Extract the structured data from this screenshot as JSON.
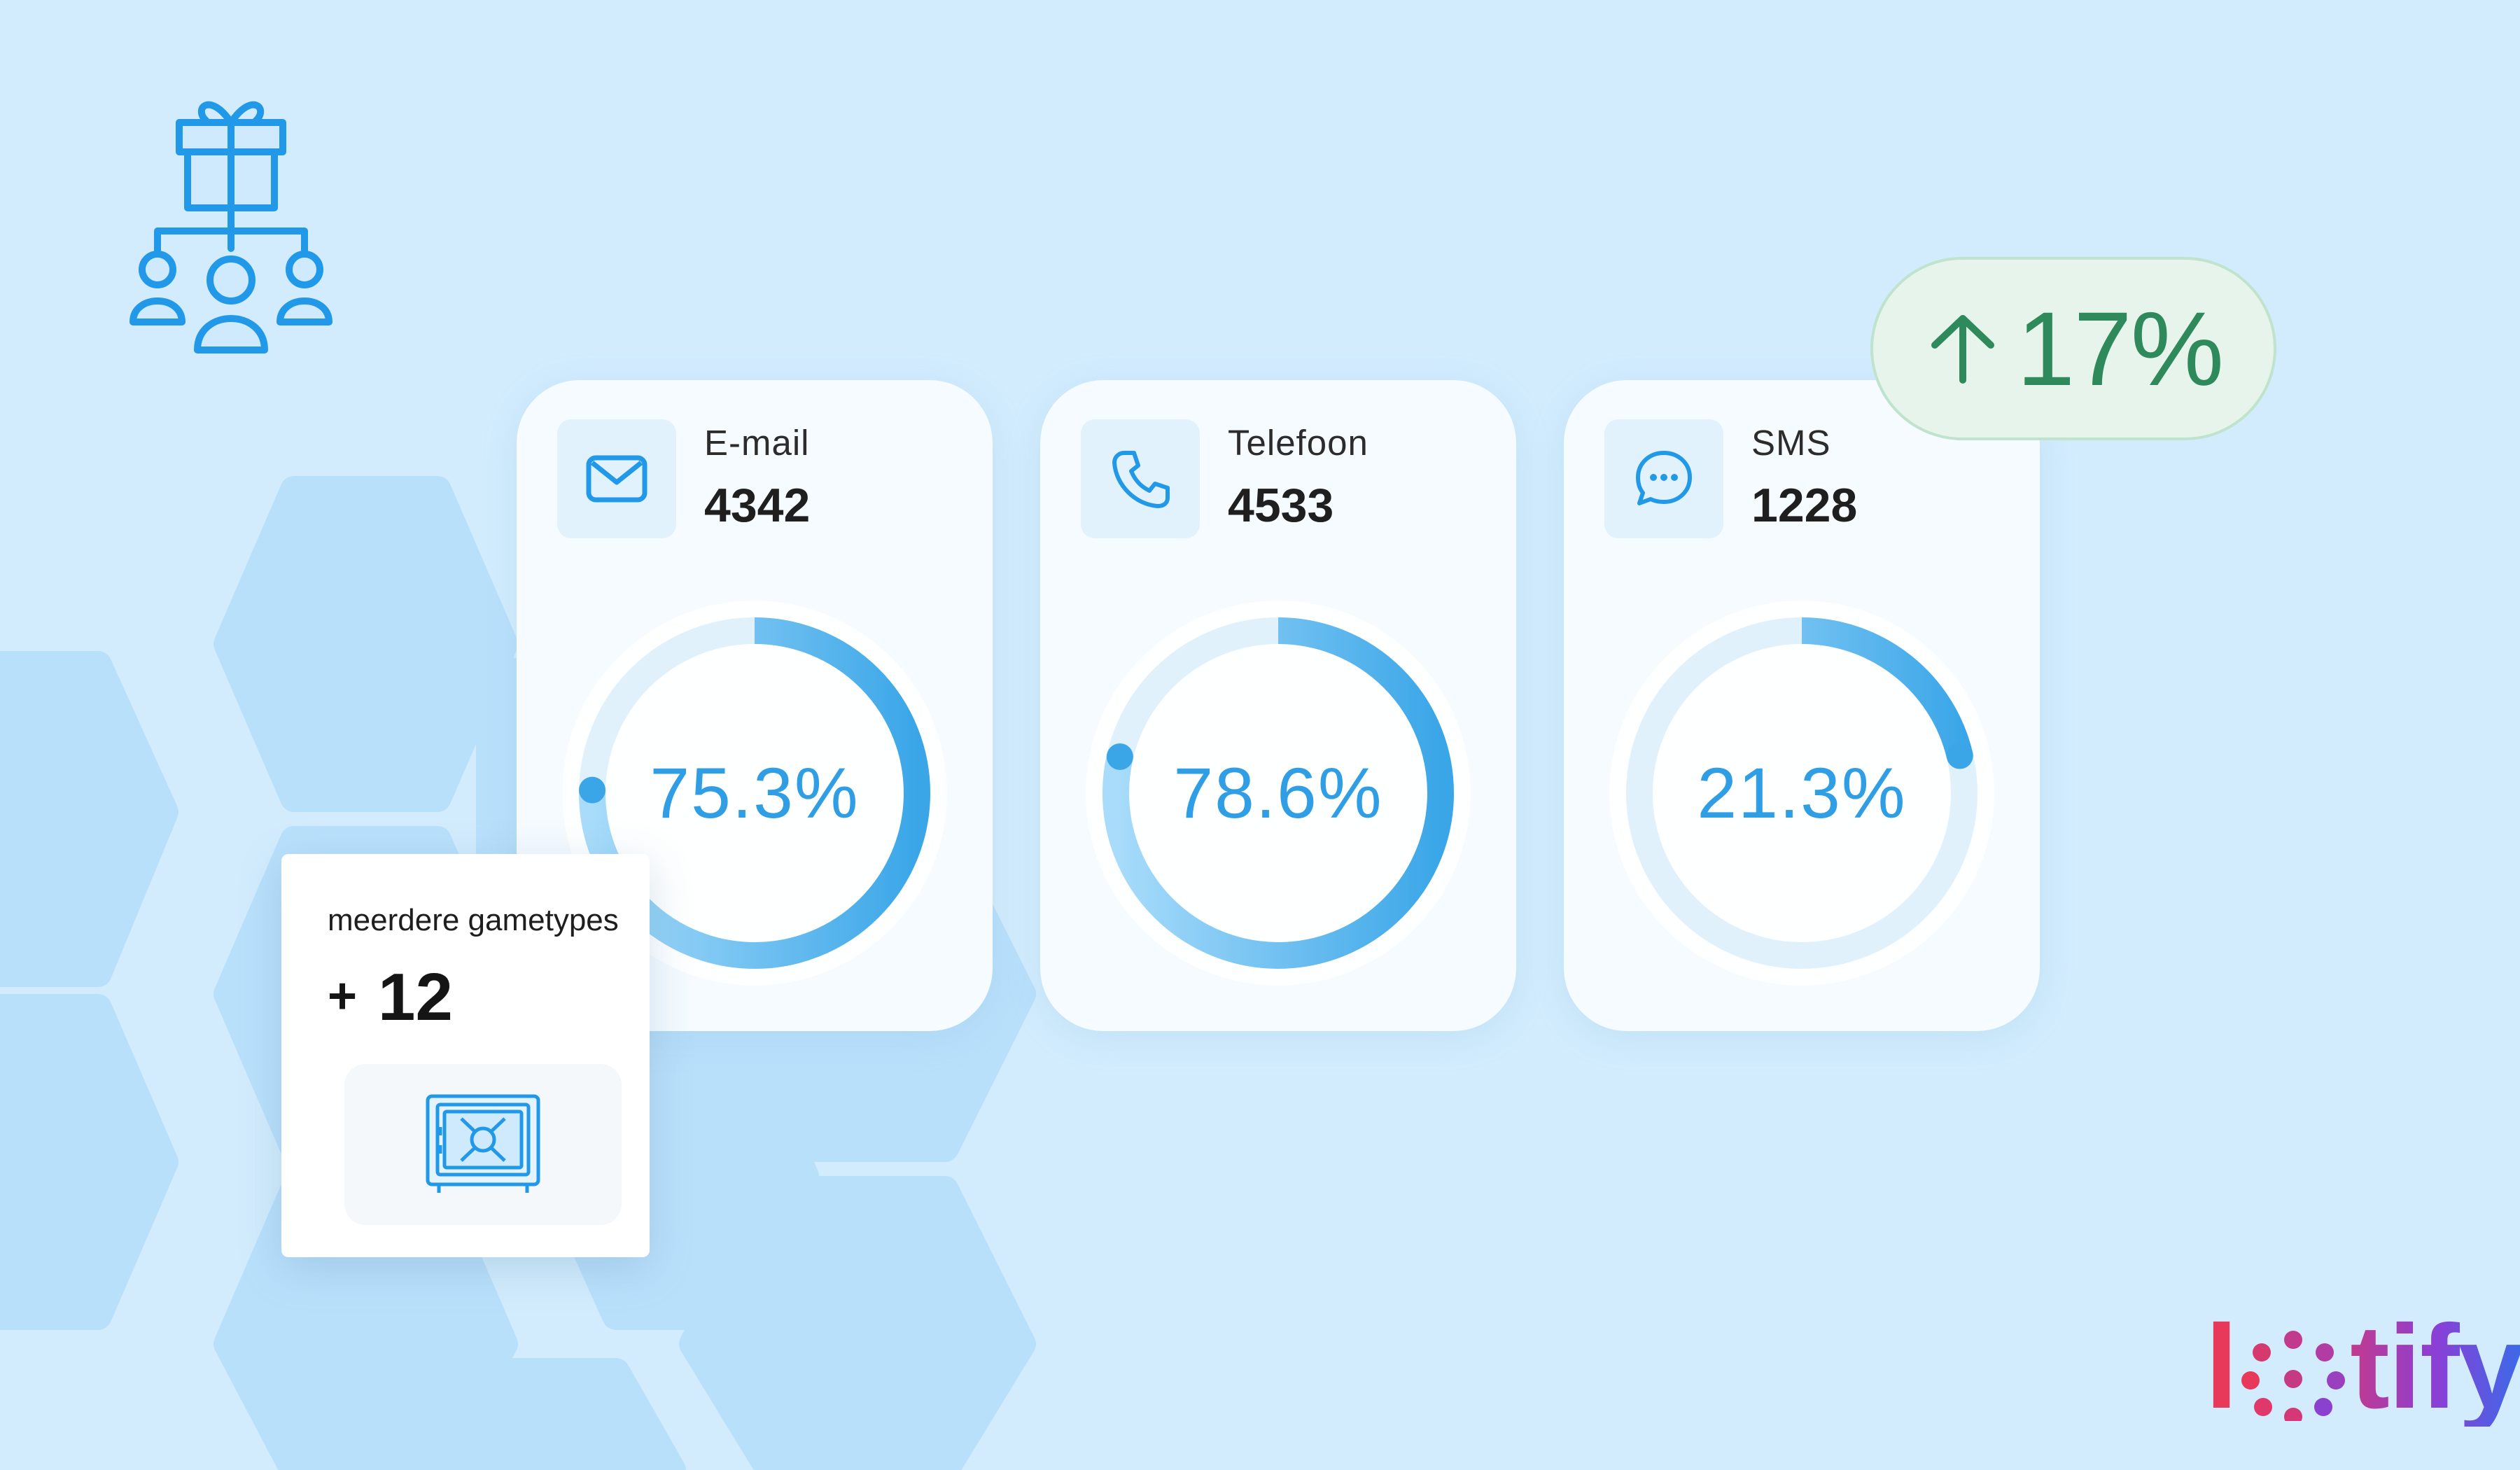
{
  "colors": {
    "background": "#d2ecfd",
    "hexagon": "#b9e0fb",
    "accent_blue": "#2f9ee5",
    "ring_light": "#a8dcfa",
    "ring_dark": "#3aa6e8",
    "ring_track": "#e1f1fc",
    "growth_green": "#2f8a5b",
    "growth_bg": "#e6f4ec",
    "brand_red": "#e8395b",
    "brand_purple": "#8a3fd6",
    "brand_blue": "#3a6be8"
  },
  "hero_icon": "gift-distribution-people-icon",
  "channels": [
    {
      "label": "E-mail",
      "value": "4342",
      "percent": 75.3,
      "percent_label": "75.3%",
      "icon": "envelope-icon"
    },
    {
      "label": "Telefoon",
      "value": "4533",
      "percent": 78.6,
      "percent_label": "78.6%",
      "icon": "phone-icon"
    },
    {
      "label": "SMS",
      "value": "1228",
      "percent": 21.3,
      "percent_label": "21.3%",
      "icon": "chat-bubble-icon"
    }
  ],
  "growth": {
    "direction": "up",
    "icon": "arrow-up-icon",
    "value": "17%"
  },
  "games_card": {
    "label": "meerdere gametypes",
    "prefix": "+",
    "count": "12",
    "icon": "safe-vault-icon"
  },
  "brand": {
    "name": "lotify",
    "logo_icon": "lotify-logo"
  }
}
